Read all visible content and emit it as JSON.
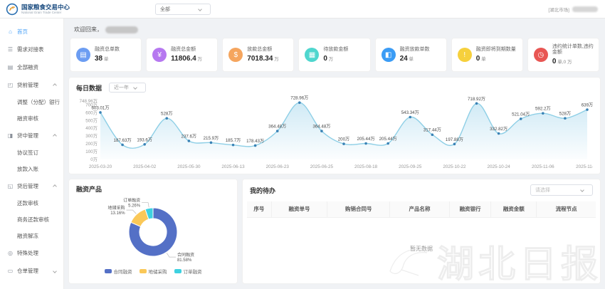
{
  "header": {
    "logo_title": "国家粮食交易中心",
    "logo_subtitle": "National Grain Trade Center",
    "market_select": "全部",
    "user_market": "[湖北市场]"
  },
  "sidebar": {
    "items": [
      {
        "id": "home",
        "label": "首页",
        "icon": "home-icon",
        "active": true
      },
      {
        "id": "demand-table",
        "label": "需求对接表",
        "icon": "list-icon"
      },
      {
        "id": "all-financing",
        "label": "全部融资",
        "icon": "doc-icon"
      },
      {
        "id": "pre-loan",
        "label": "贷前管理",
        "icon": "upload-icon",
        "expanded": true,
        "children": [
          {
            "id": "adjust-bank",
            "label": "调整（分配）银行"
          },
          {
            "id": "financing-review",
            "label": "融资审核"
          }
        ]
      },
      {
        "id": "mid-loan",
        "label": "贷中管理",
        "icon": "loan-mid-icon",
        "expanded": true,
        "children": [
          {
            "id": "agreement-sign",
            "label": "协议签订"
          },
          {
            "id": "disburse-entry",
            "label": "放款入账"
          }
        ]
      },
      {
        "id": "post-loan",
        "label": "贷后管理",
        "icon": "bank-icon",
        "expanded": true,
        "children": [
          {
            "id": "repay-review",
            "label": "还款审核"
          },
          {
            "id": "biz-repay-review",
            "label": "商务还款审核"
          },
          {
            "id": "financing-unfreeze",
            "label": "融资解冻"
          }
        ]
      },
      {
        "id": "special",
        "label": "特殊处理",
        "icon": "target-icon"
      },
      {
        "id": "warehouse",
        "label": "仓单管理",
        "icon": "folder-icon",
        "expanded": false,
        "children": []
      }
    ]
  },
  "main": {
    "welcome": "欢迎回来，",
    "stat_cards": [
      {
        "id": "total-orders",
        "label": "融资总单数",
        "value": "38",
        "unit": "单",
        "icon": "doc-icon",
        "color": "#6c9df2"
      },
      {
        "id": "total-amount",
        "label": "融资总金额",
        "value": "11806.4",
        "unit": "万",
        "icon": "money-icon",
        "color": "#b678f0"
      },
      {
        "id": "disbursed-amount",
        "label": "放款总金额",
        "value": "7018.34",
        "unit": "万",
        "icon": "coin-icon",
        "color": "#f5a55e"
      },
      {
        "id": "pending-amount",
        "label": "待放款金额",
        "value": "0",
        "unit": "万",
        "icon": "wallet-icon",
        "color": "#4fd6ce"
      },
      {
        "id": "disbursed-orders",
        "label": "融资放款单数",
        "value": "24",
        "unit": "单",
        "icon": "chart-icon",
        "color": "#3b9cf5"
      },
      {
        "id": "expiring-count",
        "label": "融资即将到期数量",
        "value": "0",
        "unit": "单",
        "icon": "expire-icon",
        "color": "#f6d03c"
      },
      {
        "id": "default-stats",
        "label": "违约统计单数,违约金额",
        "value": "0",
        "unit": "单,0 万",
        "icon": "clock-icon",
        "color": "#e85653"
      }
    ],
    "daily": {
      "title": "每日数据",
      "range_select": "近一年"
    },
    "products": {
      "title": "融资产品"
    },
    "todos": {
      "title": "我的待办",
      "filter_placeholder": "请选择",
      "columns": [
        "序号",
        "融资单号",
        "购销合同号",
        "产品名称",
        "融资银行",
        "融资金额",
        "流程节点"
      ],
      "empty_text": "暂无数据"
    }
  },
  "watermark": "湖北日报",
  "chart_data": [
    {
      "type": "line",
      "title": "每日数据",
      "range": "近一年",
      "values": [
        603.01,
        187.63,
        193.6,
        528,
        237.6,
        215.9,
        185.7,
        178.43,
        364.48,
        728.96,
        364.48,
        200,
        205.44,
        205.44,
        543.34,
        317.44,
        197.88,
        718.92,
        332.82,
        521.04,
        592.2,
        528,
        639
      ],
      "value_labels": [
        "603.01万",
        "187.63万",
        "193.6万",
        "528万",
        "237.6万",
        "215.9万",
        "185.7万",
        "178.43万",
        "364.48万",
        "728.96万",
        "364.48万",
        "200万",
        "205.44万",
        "205.44万",
        "543.34万",
        "317.44万",
        "197.88万",
        "718.92万",
        "332.82万",
        "521.04万",
        "592.2万",
        "528万",
        "639万"
      ],
      "x_tick_labels": [
        "2025-03-20",
        "2025-04-02",
        "2025-05-30",
        "2025-06-13",
        "2025-06-23",
        "2025-06-25",
        "2025-08-18",
        "2025-09-25",
        "2025-10-22",
        "2025-10-24",
        "2025-11-06",
        "2025-11-18"
      ],
      "y_ticks": [
        "0万",
        "100万",
        "200万",
        "300万",
        "400万",
        "500万",
        "600万",
        "700万",
        "748.96万"
      ],
      "y_tick_values": [
        0,
        100,
        200,
        300,
        400,
        500,
        600,
        700,
        748.96
      ],
      "y_max": 748.96,
      "line_color": "#8ecfe6",
      "point_color": "#3a82b5",
      "area_top_color": "rgba(150,208,234,0.45)",
      "area_bottom_color": "rgba(150,208,234,0.03)",
      "legend_position": "none",
      "grid": false
    },
    {
      "type": "pie",
      "title": "融资产品",
      "slices": [
        {
          "name": "合同融资",
          "pct": 81.58,
          "color": "#5470c6"
        },
        {
          "name": "地储采购",
          "pct": 13.16,
          "color": "#fac858"
        },
        {
          "name": "订单融资",
          "pct": 5.26,
          "color": "#3ed1e0"
        }
      ],
      "legend": [
        "合同融资",
        "地储采购",
        "订单融资"
      ],
      "legend_position": "bottom",
      "inner_radius_ratio": 0.56
    }
  ]
}
